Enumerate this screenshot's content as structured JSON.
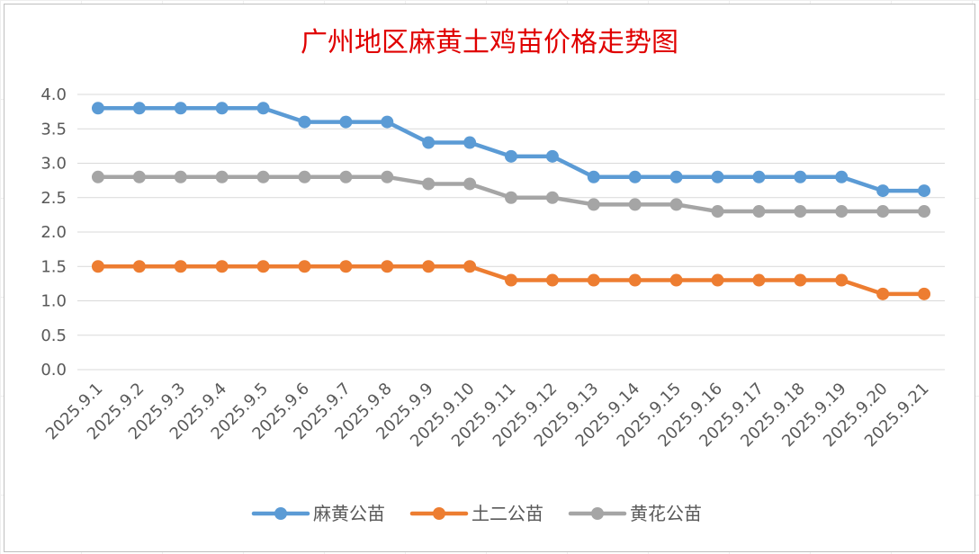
{
  "chart_data": {
    "type": "line",
    "title": "广州地区麻黄土鸡苗价格走势图",
    "categories": [
      "2025.9.1",
      "2025.9.2",
      "2025.9.3",
      "2025.9.4",
      "2025.9.5",
      "2025.9.6",
      "2025.9.7",
      "2025.9.8",
      "2025.9.9",
      "2025.9.10",
      "2025.9.11",
      "2025.9.12",
      "2025.9.13",
      "2025.9.14",
      "2025.9.15",
      "2025.9.16",
      "2025.9.17",
      "2025.9.18",
      "2025.9.19",
      "2025.9.20",
      "2025.9.21"
    ],
    "y_ticks": [
      "0.0",
      "0.5",
      "1.0",
      "1.5",
      "2.0",
      "2.5",
      "3.0",
      "3.5",
      "4.0"
    ],
    "ylim": [
      0,
      4.0
    ],
    "grid": true,
    "legend_position": "bottom",
    "series": [
      {
        "name": "麻黄公苗",
        "color": "#5b9bd5",
        "values": [
          3.8,
          3.8,
          3.8,
          3.8,
          3.8,
          3.6,
          3.6,
          3.6,
          3.3,
          3.3,
          3.1,
          3.1,
          2.8,
          2.8,
          2.8,
          2.8,
          2.8,
          2.8,
          2.8,
          2.6,
          2.6
        ]
      },
      {
        "name": "土二公苗",
        "color": "#ed7d31",
        "values": [
          1.5,
          1.5,
          1.5,
          1.5,
          1.5,
          1.5,
          1.5,
          1.5,
          1.5,
          1.5,
          1.3,
          1.3,
          1.3,
          1.3,
          1.3,
          1.3,
          1.3,
          1.3,
          1.3,
          1.1,
          1.1
        ]
      },
      {
        "name": "黄花公苗",
        "color": "#a5a5a5",
        "values": [
          2.8,
          2.8,
          2.8,
          2.8,
          2.8,
          2.8,
          2.8,
          2.8,
          2.7,
          2.7,
          2.5,
          2.5,
          2.4,
          2.4,
          2.4,
          2.3,
          2.3,
          2.3,
          2.3,
          2.3,
          2.3
        ]
      }
    ]
  }
}
